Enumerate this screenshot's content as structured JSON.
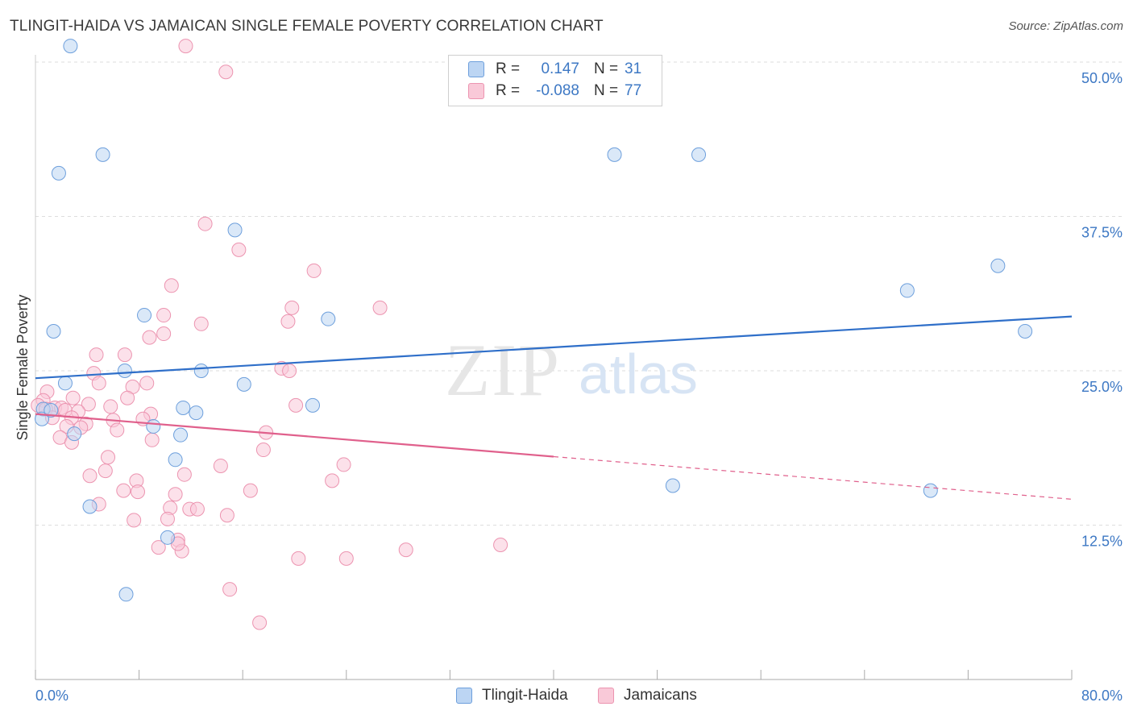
{
  "title": "TLINGIT-HAIDA VS JAMAICAN SINGLE FEMALE POVERTY CORRELATION CHART",
  "source": "Source: ZipAtlas.com",
  "watermark": {
    "zip": "ZIP",
    "atlas": "atlas"
  },
  "legend": {
    "series1": {
      "r_label": "R =",
      "r_value": "0.147",
      "n_label": "N =",
      "n_value": "31"
    },
    "series2": {
      "r_label": "R =",
      "r_value": "-0.088",
      "n_label": "N =",
      "n_value": "77"
    }
  },
  "colors": {
    "blue_fill": "#bcd5f3",
    "blue_stroke": "#6d9fdc",
    "blue_line": "#2f6fc9",
    "pink_fill": "#f9c9d8",
    "pink_stroke": "#ec94b0",
    "pink_line": "#e0608c",
    "axis_label": "#3d78c4",
    "grid": "#dddddd"
  },
  "chart_data": {
    "type": "scatter",
    "title": "TLINGIT-HAIDA VS JAMAICAN SINGLE FEMALE POVERTY CORRELATION CHART",
    "xlabel": "",
    "ylabel": "Single Female Poverty",
    "xlim": [
      0,
      80
    ],
    "ylim": [
      0,
      50
    ],
    "x_tick_labels": {
      "min": "0.0%",
      "max": "80.0%"
    },
    "y_ticks": [
      {
        "value": 12.5,
        "label": "12.5%"
      },
      {
        "value": 25.0,
        "label": "25.0%"
      },
      {
        "value": 37.5,
        "label": "37.5%"
      },
      {
        "value": 50.0,
        "label": "50.0%"
      }
    ],
    "series": [
      {
        "name": "Tlingit-Haida",
        "color": "blue",
        "trend": {
          "x0": 0,
          "y0": 24.4,
          "x1": 80,
          "y1": 29.4,
          "dashed_from": null
        },
        "points": [
          [
            2.7,
            51.3
          ],
          [
            5.2,
            42.5
          ],
          [
            1.8,
            41.0
          ],
          [
            15.4,
            36.4
          ],
          [
            1.4,
            28.2
          ],
          [
            8.4,
            29.5
          ],
          [
            22.6,
            29.2
          ],
          [
            6.9,
            25.0
          ],
          [
            12.8,
            25.0
          ],
          [
            2.3,
            24.0
          ],
          [
            16.1,
            23.9
          ],
          [
            11.4,
            22.0
          ],
          [
            12.4,
            21.6
          ],
          [
            21.4,
            22.2
          ],
          [
            0.6,
            21.9
          ],
          [
            0.5,
            21.1
          ],
          [
            9.1,
            20.5
          ],
          [
            11.2,
            19.8
          ],
          [
            3.0,
            19.9
          ],
          [
            10.8,
            17.8
          ],
          [
            4.2,
            14.0
          ],
          [
            10.2,
            11.5
          ],
          [
            7.0,
            6.9
          ],
          [
            44.7,
            42.5
          ],
          [
            51.2,
            42.5
          ],
          [
            67.3,
            31.5
          ],
          [
            74.3,
            33.5
          ],
          [
            76.4,
            28.2
          ],
          [
            49.2,
            15.7
          ],
          [
            69.1,
            15.3
          ],
          [
            1.2,
            21.8
          ]
        ]
      },
      {
        "name": "Jamaicans",
        "color": "pink",
        "trend": {
          "x0": 0,
          "y0": 21.5,
          "x1": 80,
          "y1": 14.6,
          "dashed_from": 40
        },
        "points": [
          [
            11.6,
            51.3
          ],
          [
            14.7,
            49.2
          ],
          [
            13.1,
            36.9
          ],
          [
            15.7,
            34.8
          ],
          [
            21.5,
            33.1
          ],
          [
            10.5,
            31.9
          ],
          [
            19.8,
            30.1
          ],
          [
            26.6,
            30.1
          ],
          [
            9.9,
            29.5
          ],
          [
            19.5,
            29.0
          ],
          [
            12.8,
            28.8
          ],
          [
            9.9,
            28.0
          ],
          [
            8.8,
            27.7
          ],
          [
            4.7,
            26.3
          ],
          [
            6.9,
            26.3
          ],
          [
            4.5,
            24.8
          ],
          [
            19.0,
            25.2
          ],
          [
            19.6,
            25.0
          ],
          [
            4.9,
            24.0
          ],
          [
            7.5,
            23.7
          ],
          [
            8.6,
            24.0
          ],
          [
            0.9,
            23.3
          ],
          [
            2.9,
            22.8
          ],
          [
            7.1,
            22.8
          ],
          [
            4.1,
            22.3
          ],
          [
            0.6,
            22.6
          ],
          [
            1.5,
            22.0
          ],
          [
            0.2,
            22.2
          ],
          [
            0.8,
            21.9
          ],
          [
            2.0,
            22.0
          ],
          [
            2.3,
            21.8
          ],
          [
            3.3,
            21.7
          ],
          [
            5.8,
            22.1
          ],
          [
            20.1,
            22.2
          ],
          [
            8.9,
            21.5
          ],
          [
            1.3,
            21.2
          ],
          [
            2.8,
            21.2
          ],
          [
            6.0,
            21.0
          ],
          [
            8.3,
            21.1
          ],
          [
            3.9,
            20.7
          ],
          [
            2.4,
            20.5
          ],
          [
            3.5,
            20.4
          ],
          [
            6.3,
            20.2
          ],
          [
            17.8,
            20.0
          ],
          [
            1.9,
            19.6
          ],
          [
            9.0,
            19.4
          ],
          [
            2.8,
            19.2
          ],
          [
            17.6,
            18.6
          ],
          [
            5.6,
            18.0
          ],
          [
            14.3,
            17.3
          ],
          [
            23.8,
            17.4
          ],
          [
            5.4,
            16.9
          ],
          [
            4.2,
            16.5
          ],
          [
            11.5,
            16.6
          ],
          [
            7.8,
            16.1
          ],
          [
            22.9,
            16.1
          ],
          [
            6.8,
            15.3
          ],
          [
            16.6,
            15.3
          ],
          [
            7.9,
            15.2
          ],
          [
            10.8,
            15.0
          ],
          [
            4.9,
            14.2
          ],
          [
            10.4,
            13.9
          ],
          [
            11.9,
            13.8
          ],
          [
            12.5,
            13.8
          ],
          [
            14.8,
            13.3
          ],
          [
            7.6,
            12.9
          ],
          [
            10.2,
            13.0
          ],
          [
            11.0,
            11.3
          ],
          [
            9.5,
            10.7
          ],
          [
            11.3,
            10.4
          ],
          [
            20.3,
            9.8
          ],
          [
            24.0,
            9.8
          ],
          [
            28.6,
            10.5
          ],
          [
            35.9,
            10.9
          ],
          [
            15.0,
            7.3
          ],
          [
            17.3,
            4.6
          ],
          [
            11.0,
            11.0
          ]
        ]
      }
    ]
  }
}
